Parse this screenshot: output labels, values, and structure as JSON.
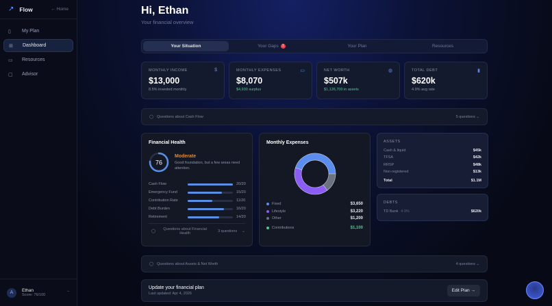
{
  "sidebar": {
    "brand": "Flow",
    "home": "Home",
    "items": [
      {
        "label": "My Plan",
        "icon": "clipboard-icon"
      },
      {
        "label": "Dashboard",
        "icon": "grid-icon",
        "active": true
      },
      {
        "label": "Resources",
        "icon": "book-icon"
      },
      {
        "label": "Advisor",
        "icon": "chat-icon"
      }
    ],
    "user": {
      "name": "Ethan",
      "score": "Score: 76/100",
      "initial": "A"
    }
  },
  "header": {
    "title": "Hi, Ethan",
    "subtitle": "Your financial overview"
  },
  "tabs": [
    {
      "label": "Your Situation",
      "active": true
    },
    {
      "label": "Your Gaps",
      "badge": "1"
    },
    {
      "label": "Your Plan"
    },
    {
      "label": "Resources"
    }
  ],
  "stats": [
    {
      "label": "MONTHLY INCOME",
      "value": "$13,000",
      "note": "8.5% invested monthly",
      "icon": "$"
    },
    {
      "label": "MONTHLY EXPENSES",
      "value": "$8,070",
      "note": "$4,930 surplus",
      "icon": "▭"
    },
    {
      "label": "NET WORTH",
      "value": "$507k",
      "note": "$1,126,700 in assets",
      "icon": "◍"
    },
    {
      "label": "TOTAL DEBT",
      "value": "$620k",
      "note": "4.9% avg rate",
      "icon": "▮"
    }
  ],
  "q_cashflow": {
    "label": "Questions about Cash Flow",
    "count": "5 questions"
  },
  "health": {
    "title": "Financial Health",
    "score": "76",
    "score_fraction": 0.76,
    "level": "Moderate",
    "desc": "Good foundation, but a few areas need attention.",
    "bars": [
      {
        "name": "Cash Flow",
        "score": 20,
        "label": "20/20"
      },
      {
        "name": "Emergency Fund",
        "score": 15,
        "label": "15/20"
      },
      {
        "name": "Contribution Rate",
        "score": 11,
        "label": "11/20"
      },
      {
        "name": "Debt Burden",
        "score": 16,
        "label": "16/20"
      },
      {
        "name": "Retirement",
        "score": 14,
        "label": "14/20"
      }
    ],
    "q_label": "Questions about Financial Health",
    "q_count": "3 questions"
  },
  "expenses": {
    "title": "Monthly Expenses",
    "items": [
      {
        "name": "Fixed",
        "value": "$3,650",
        "amount": 3650,
        "color": "#5b8def"
      },
      {
        "name": "Lifestyle",
        "value": "$3,220",
        "amount": 3220,
        "color": "#8b5cf6"
      },
      {
        "name": "Other",
        "value": "$1,200",
        "amount": 1200,
        "color": "#6b7280"
      }
    ],
    "contributions": {
      "name": "Contributions",
      "value": "$1,100",
      "color": "#4ccb8d"
    }
  },
  "assets": {
    "title": "ASSETS",
    "rows": [
      {
        "name": "Cash & liquid",
        "value": "$45k"
      },
      {
        "name": "TFSA",
        "value": "$42k"
      },
      {
        "name": "RRSP",
        "value": "$48k"
      },
      {
        "name": "Non-registered",
        "value": "$13k"
      }
    ],
    "total_label": "Total",
    "total": "$1.1M"
  },
  "debts": {
    "title": "DEBTS",
    "rows": [
      {
        "name": "TD Bank",
        "rate": "4.9%",
        "value": "$620k"
      }
    ]
  },
  "q_assets": {
    "label": "Questions about Assets & Net Worth",
    "count": "4 questions"
  },
  "plan": {
    "title": "Update your financial plan",
    "updated": "Last updated: Apr 4, 2026",
    "button": "Edit Plan"
  }
}
